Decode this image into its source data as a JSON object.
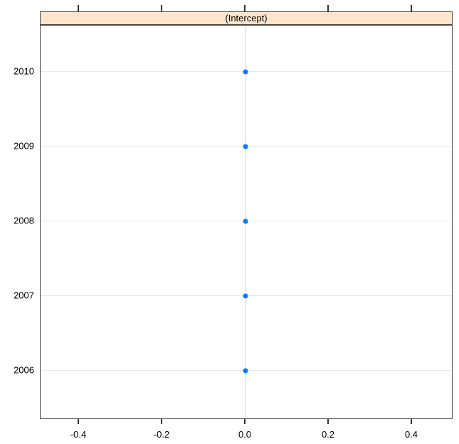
{
  "chart_data": {
    "type": "scatter",
    "variant": "lattice-dotplot",
    "title": "(Intercept)",
    "categories": [
      "2006",
      "2007",
      "2008",
      "2009",
      "2010"
    ],
    "values": [
      0.0,
      0.0,
      0.0,
      0.0,
      0.0
    ],
    "row_display_order_top_to_bottom": [
      "2010",
      "2009",
      "2008",
      "2007",
      "2006"
    ],
    "x_ticks": [
      -0.4,
      -0.2,
      0.0,
      0.2,
      0.4
    ],
    "x_tick_labels": [
      "-0.4",
      "-0.2",
      "0.0",
      "0.2",
      "0.4"
    ],
    "xlim": [
      -0.5,
      0.5
    ],
    "xlabel": "",
    "ylabel": "",
    "legend": "none",
    "grid": "horizontal line per category; vertical reference line at x=0",
    "reference_line_x": 0.0,
    "colors": {
      "point": "#0080ff",
      "strip_fill": "#ffe5cc",
      "gridline": "#e8e8e8",
      "border": "#474747",
      "tick": "#333333",
      "text": "#000000"
    }
  }
}
